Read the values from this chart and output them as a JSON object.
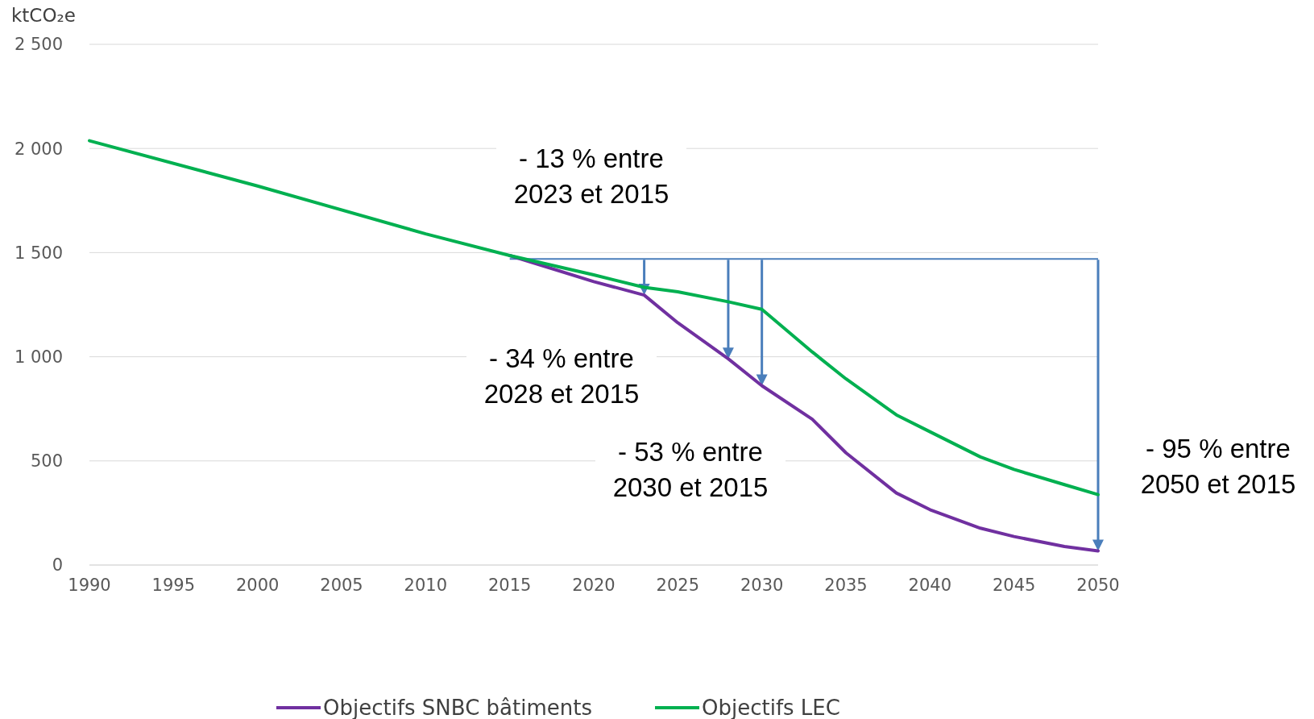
{
  "chart_data": {
    "type": "line",
    "ylabel": "ktCO₂e",
    "x": [
      1990,
      2000,
      2010,
      2015,
      2020,
      2023,
      2025,
      2028,
      2030,
      2033,
      2035,
      2038,
      2040,
      2043,
      2045,
      2048,
      2050
    ],
    "series": [
      {
        "name": "Objectifs SNBC bâtiments",
        "color": "#7030a0",
        "x": [
          2015,
          2020,
          2023,
          2025,
          2028,
          2030,
          2033,
          2035,
          2038,
          2040,
          2043,
          2045,
          2048,
          2050
        ],
        "values": [
          1486,
          1361,
          1296,
          1163,
          990,
          861,
          700,
          539,
          346,
          266,
          177,
          137,
          89,
          68
        ]
      },
      {
        "name": "Objectifs LEC",
        "color": "#00b050",
        "values": [
          2037,
          1820,
          1590,
          1486,
          1393,
          1333,
          1312,
          1264,
          1228,
          1023,
          894,
          721,
          640,
          519,
          459,
          386,
          338
        ]
      }
    ],
    "xlim": [
      1990,
      2050
    ],
    "xticks": [
      1990,
      1995,
      2000,
      2005,
      2010,
      2015,
      2020,
      2025,
      2030,
      2035,
      2040,
      2045,
      2050
    ],
    "ylim": [
      0,
      2500
    ],
    "yticks": [
      0,
      500,
      {
        "value": 1000,
        "label": "1 000"
      },
      {
        "value": 1500,
        "label": "1 500"
      },
      {
        "value": 2000,
        "label": "2 000"
      },
      {
        "value": 2500,
        "label": "2 500"
      }
    ],
    "grid": "y",
    "legend": "bottom",
    "marker": "none",
    "line_style": "solid",
    "ref_lines": [
      {
        "axis": "y",
        "value": 1470,
        "color": "#4a7ebb"
      }
    ],
    "annotations": [
      "- 13 % entre\n2023 et 2015",
      "- 34 % entre\n2028 et 2015",
      "- 53 % entre\n2030 et 2015",
      "- 95 % entre\n2050 et 2015"
    ]
  }
}
